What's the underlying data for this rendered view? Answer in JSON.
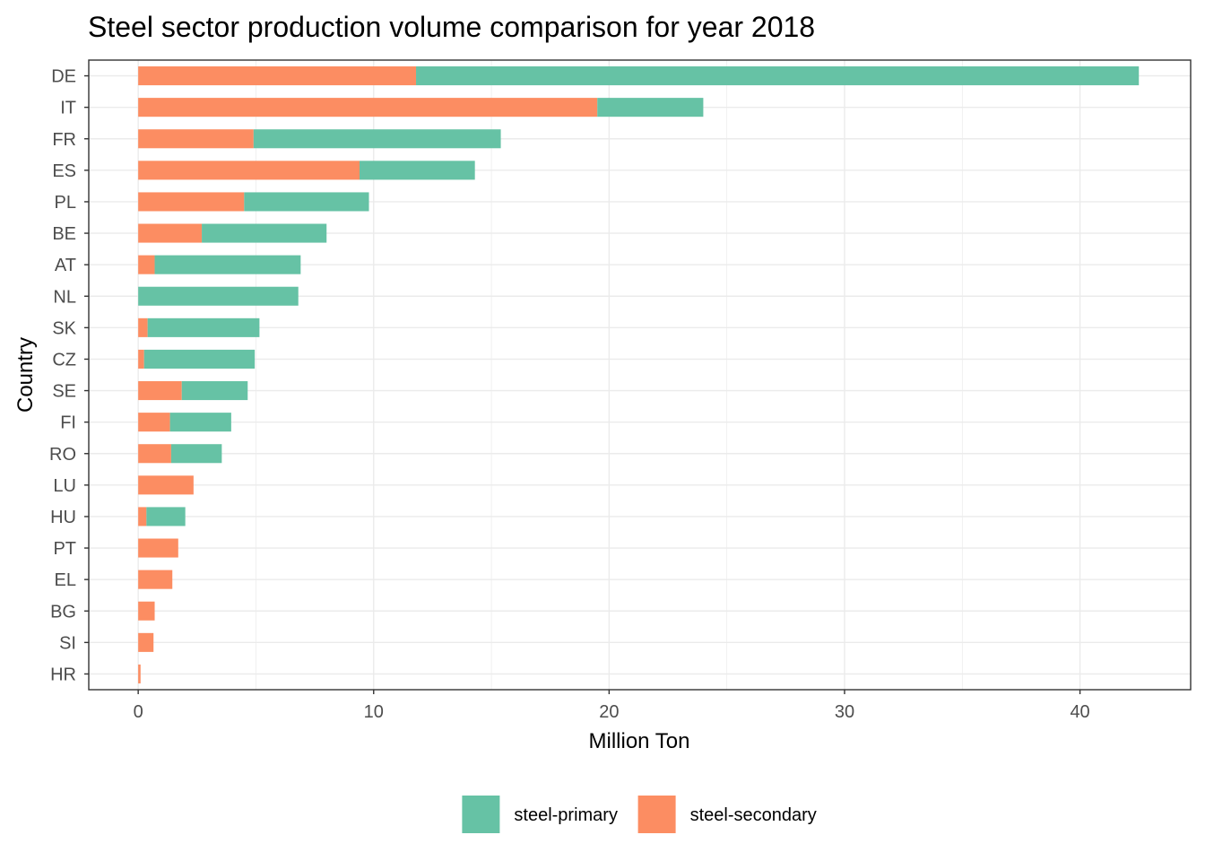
{
  "chart_data": {
    "type": "bar",
    "orientation": "horizontal",
    "stacked": true,
    "title": "Steel sector production volume comparison for year 2018",
    "xlabel": "Million Ton",
    "ylabel": "Country",
    "xlim": [
      -2.1,
      44.7
    ],
    "x_ticks": [
      0,
      10,
      20,
      30,
      40
    ],
    "x_tick_labels": [
      "0",
      "10",
      "20",
      "30",
      "40"
    ],
    "grid": true,
    "legend_position": "bottom",
    "categories": [
      "DE",
      "IT",
      "FR",
      "ES",
      "PL",
      "BE",
      "AT",
      "NL",
      "SK",
      "CZ",
      "SE",
      "FI",
      "RO",
      "LU",
      "HU",
      "PT",
      "EL",
      "BG",
      "SI",
      "HR"
    ],
    "series": [
      {
        "name": "steel-secondary",
        "color": "#FC8D62",
        "values": [
          11.8,
          19.5,
          4.9,
          9.4,
          4.5,
          2.7,
          0.7,
          0.0,
          0.4,
          0.25,
          1.85,
          1.35,
          1.4,
          2.35,
          0.35,
          1.7,
          1.45,
          0.7,
          0.65,
          0.1
        ]
      },
      {
        "name": "steel-primary",
        "color": "#66C2A5",
        "values": [
          30.7,
          4.5,
          10.5,
          4.9,
          5.3,
          5.3,
          6.2,
          6.8,
          4.75,
          4.7,
          2.8,
          2.6,
          2.15,
          0.0,
          1.65,
          0.0,
          0.0,
          0.0,
          0.0,
          0.0
        ]
      }
    ]
  },
  "legend": {
    "items": [
      {
        "label": "steel-primary",
        "color": "#66C2A5"
      },
      {
        "label": "steel-secondary",
        "color": "#FC8D62"
      }
    ]
  }
}
